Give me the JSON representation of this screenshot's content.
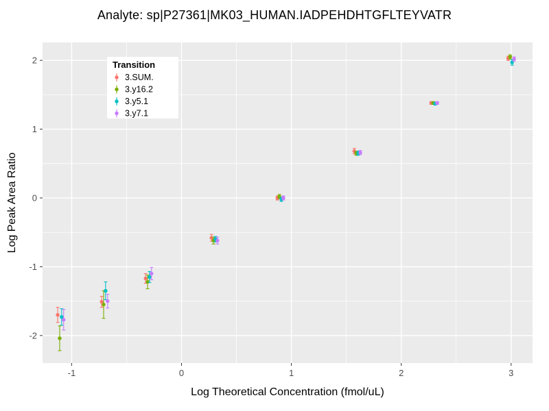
{
  "chart_data": {
    "type": "scatter",
    "title": "Analyte: sp|P27361|MK03_HUMAN.IADPEHDHTGFLTEYVATR",
    "xlabel": "Log Theoretical Concentration (fmol/uL)",
    "ylabel": "Log Peak Area Ratio",
    "xlim": [
      -1.265,
      3.195
    ],
    "ylim": [
      -2.4,
      2.26
    ],
    "x_ticks": [
      -1,
      0,
      1,
      2,
      3
    ],
    "y_ticks": [
      -2,
      -1,
      0,
      1,
      2
    ],
    "grid": true,
    "panel_color": "#EBEBEB",
    "grid_color": "#FFFFFF",
    "tick_color": "#333333",
    "tick_label_color": "#4D4D4D",
    "legend": {
      "title": "Transition",
      "position": "top-left"
    },
    "x": [
      -1.1,
      -0.7,
      -0.3,
      0.3,
      0.9,
      1.6,
      2.3,
      3.0
    ],
    "series": [
      {
        "name": "3.SUM.",
        "color": "#F8766D",
        "dodge": -0.027,
        "y": [
          -1.7,
          -1.51,
          -1.17,
          -0.58,
          0.0,
          0.68,
          1.38,
          2.03
        ],
        "err": [
          0.11,
          0.08,
          0.07,
          0.05,
          0.03,
          0.04,
          0.02,
          0.03
        ]
      },
      {
        "name": "3.y16.2",
        "color": "#7CAE00",
        "dodge": -0.009,
        "y": [
          -2.04,
          -1.55,
          -1.22,
          -0.62,
          0.02,
          0.65,
          1.38,
          2.05
        ],
        "err": [
          0.18,
          0.2,
          0.1,
          0.05,
          0.03,
          0.03,
          0.02,
          0.03
        ]
      },
      {
        "name": "3.y5.1",
        "color": "#00BFC4",
        "dodge": 0.009,
        "y": [
          -1.73,
          -1.35,
          -1.15,
          -0.6,
          -0.02,
          0.65,
          1.37,
          1.97
        ],
        "err": [
          0.12,
          0.13,
          0.08,
          0.04,
          0.03,
          0.03,
          0.02,
          0.04
        ]
      },
      {
        "name": "3.y7.1",
        "color": "#C77CFF",
        "dodge": 0.027,
        "y": [
          -1.77,
          -1.5,
          -1.1,
          -0.62,
          0.0,
          0.66,
          1.38,
          2.02
        ],
        "err": [
          0.15,
          0.1,
          0.09,
          0.05,
          0.03,
          0.03,
          0.02,
          0.03
        ]
      }
    ]
  }
}
